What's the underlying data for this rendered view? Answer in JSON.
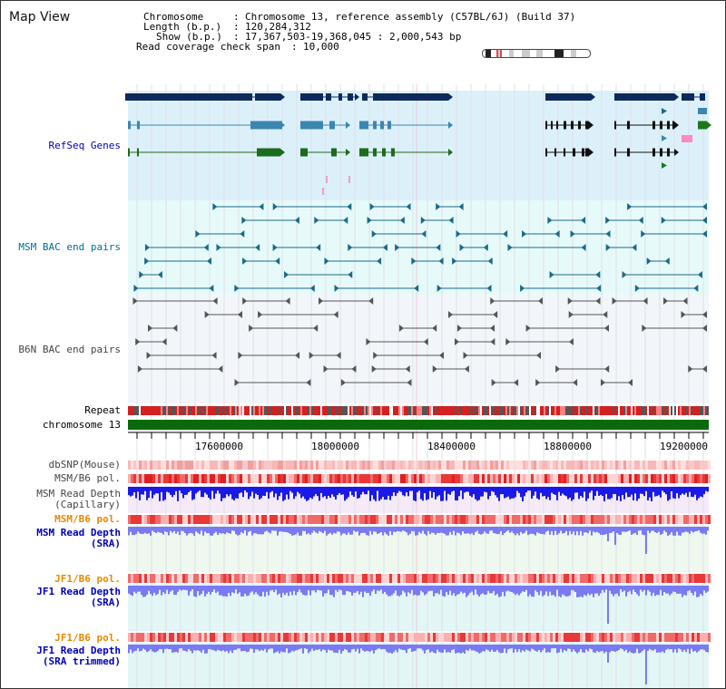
{
  "header": {
    "view_title": "Map View",
    "chromosome_label": "Chromosome",
    "chromosome_value": "Chromosome 13, reference assembly (C57BL/6J) (Build 37)",
    "length_label": "Length (b.p.)",
    "length_value": "120,284,312",
    "show_label": "Show (b.p.)",
    "show_value": "17,367,503-19,368,045 : 2,000,543 bp",
    "coverage_label": "Read coverage check span",
    "coverage_value": "10,000",
    "separator": ":"
  },
  "tracks": {
    "refseq": "RefSeq Genes",
    "msm_bac": "MSM BAC end pairs",
    "b6n_bac": "B6N BAC end pairs",
    "repeat": "Repeat",
    "chromosome": "chromosome 13",
    "dbsnp": "dbSNP(Mouse)",
    "msm_pol_1": "MSM/B6 pol.",
    "msm_depth_cap_1": "MSM Read Depth",
    "msm_depth_cap_2": "(Capillary)",
    "msm_pol_2": "MSM/B6 pol.",
    "msm_depth_sra_1": "MSM Read Depth",
    "msm_depth_sra_2": "(SRA)",
    "jf1_pol_1": "JF1/B6 pol.",
    "jf1_depth_sra_1": "JF1 Read Depth",
    "jf1_depth_sra_2": "(SRA)",
    "jf1_pol_2": "JF1/B6 pol.",
    "jf1_depth_trim_1": "JF1 Read Depth",
    "jf1_depth_trim_2": "(SRA trimmed)"
  },
  "axis": {
    "ticks": [
      "17600000",
      "18000000",
      "18400000",
      "18800000",
      "19200000"
    ]
  },
  "colors": {
    "refseq_bg": "#dcf0fa",
    "bac_bg": "#e6fafa",
    "b6n_bg": "#f2f6fa",
    "gene_dark": "#0e2a5c",
    "gene_mid": "#3b86b0",
    "gene_green": "#1d6b1d",
    "bac_line": "#1a6a8a",
    "b6n_line": "#555555",
    "chromosome_bar": "#0a6a0a",
    "depth_blue": "#1a1ae6",
    "depth_light": "#7a7af5"
  }
}
